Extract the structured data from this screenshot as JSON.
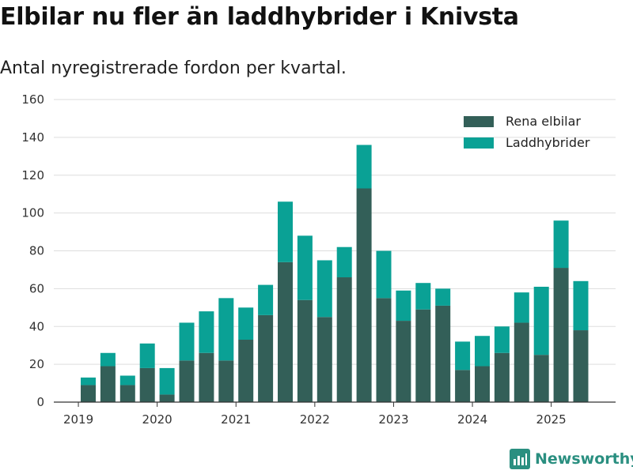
{
  "header": {
    "title": "Elbilar nu fler än laddhybrider i Knivsta",
    "subtitle": "Antal nyregistrerade fordon per kvartal."
  },
  "colors": {
    "elbilar": "#335f58",
    "laddhybrider": "#0aa195",
    "grid": "#dddddd",
    "axis": "#333333",
    "brand": "#2a8f80"
  },
  "brand": {
    "name": "Newsworthy",
    "icon": "bar-chart-logo-icon"
  },
  "chart_data": {
    "type": "bar",
    "stacked": true,
    "title": "Elbilar nu fler än laddhybrider i Knivsta",
    "subtitle": "Antal nyregistrerade fordon per kvartal.",
    "xlabel": "",
    "ylabel": "",
    "ylim": [
      0,
      160
    ],
    "yticks": [
      0,
      20,
      40,
      60,
      80,
      100,
      120,
      140,
      160
    ],
    "grid": true,
    "legend_position": "top-right",
    "categories": [
      "2019 Q2",
      "2019 Q3",
      "2019 Q4",
      "2020 Q1",
      "2020 Q2",
      "2020 Q3",
      "2020 Q4",
      "2021 Q1",
      "2021 Q2",
      "2021 Q3",
      "2021 Q4",
      "2022 Q1",
      "2022 Q2",
      "2022 Q3",
      "2022 Q4",
      "2023 Q1",
      "2023 Q2",
      "2023 Q3",
      "2023 Q4",
      "2024 Q1",
      "2024 Q2",
      "2024 Q3",
      "2024 Q4",
      "2025 Q1",
      "2025 Q2",
      "2025 Q3"
    ],
    "xticks": [
      {
        "label": "2019",
        "index": -0.5
      },
      {
        "label": "2020",
        "index": 3.5
      },
      {
        "label": "2021",
        "index": 7.5
      },
      {
        "label": "2022",
        "index": 11.5
      },
      {
        "label": "2023",
        "index": 15.5
      },
      {
        "label": "2024",
        "index": 19.5
      },
      {
        "label": "2025",
        "index": 23.5
      }
    ],
    "series": [
      {
        "name": "Rena elbilar",
        "color": "#335f58",
        "values": [
          9,
          19,
          9,
          18,
          4,
          22,
          26,
          22,
          33,
          46,
          74,
          54,
          45,
          66,
          113,
          55,
          43,
          49,
          51,
          17,
          19,
          26,
          42,
          25,
          71,
          38
        ]
      },
      {
        "name": "Laddhybrider",
        "color": "#0aa195",
        "values": [
          4,
          7,
          5,
          13,
          14,
          20,
          22,
          33,
          17,
          16,
          32,
          34,
          30,
          16,
          23,
          25,
          16,
          14,
          9,
          15,
          16,
          14,
          16,
          36,
          25,
          26
        ]
      }
    ]
  }
}
